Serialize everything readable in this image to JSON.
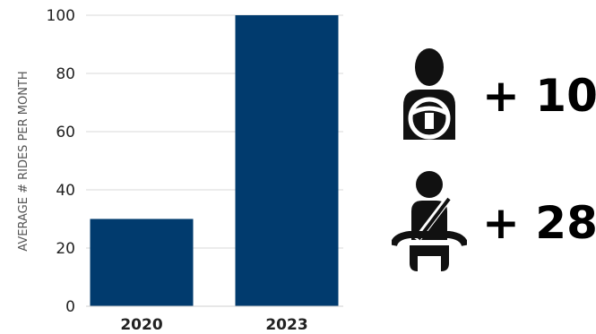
{
  "chart_data": {
    "type": "bar",
    "categories": [
      "2020",
      "2023"
    ],
    "values": [
      30,
      100
    ],
    "ylabel": "AVERAGE # RIDES PER MONTH",
    "ylim": [
      0,
      100
    ],
    "yticks": [
      0,
      20,
      40,
      60,
      80,
      100
    ],
    "grid": true,
    "bar_color": "#013b6e"
  },
  "stats": [
    {
      "icon": "driver-at-steering-wheel-icon",
      "value": "+ 10"
    },
    {
      "icon": "passenger-seatbelt-icon",
      "value": "+ 28"
    }
  ]
}
